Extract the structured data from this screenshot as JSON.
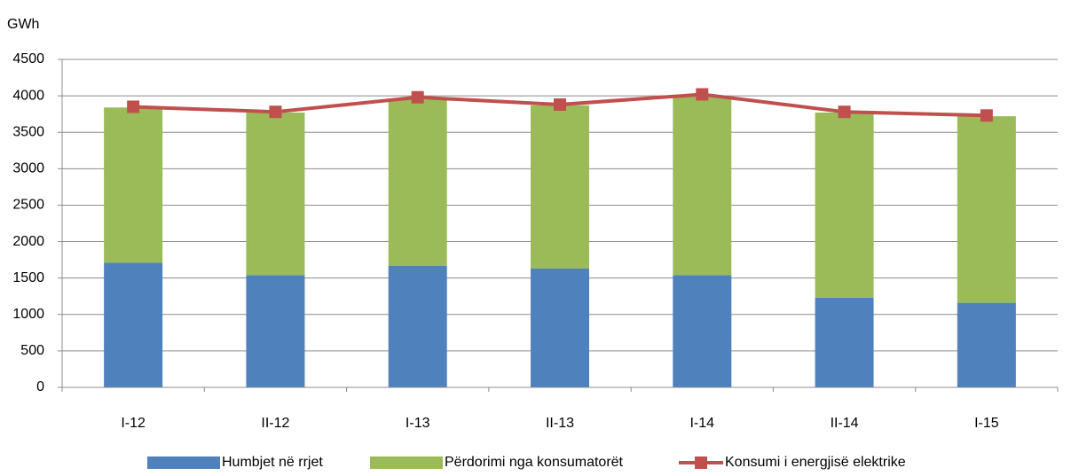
{
  "chart_data": {
    "type": "bar",
    "stacked": true,
    "y_label": "GWh",
    "categories": [
      "I-12",
      "II-12",
      "I-13",
      "II-13",
      "I-14",
      "II-14",
      "I-15"
    ],
    "series": [
      {
        "name": "Humbjet në rrjet",
        "type": "bar",
        "color": "#4f81bd",
        "values": [
          1710,
          1540,
          1670,
          1630,
          1540,
          1230,
          1160
        ]
      },
      {
        "name": "Përdorimi nga konsumatorët",
        "type": "bar",
        "color": "#9bbb59",
        "values": [
          2130,
          2230,
          2280,
          2240,
          2460,
          2540,
          2560
        ]
      },
      {
        "name": "Konsumi i energjisë elektrike",
        "type": "line",
        "color": "#c0504d",
        "values": [
          3850,
          3780,
          3980,
          3880,
          4020,
          3780,
          3730
        ]
      }
    ],
    "ylim": [
      0,
      4500
    ],
    "yticks": [
      0,
      500,
      1000,
      1500,
      2000,
      2500,
      3000,
      3500,
      4000,
      4500
    ],
    "grid": true,
    "legend": "bottom"
  }
}
